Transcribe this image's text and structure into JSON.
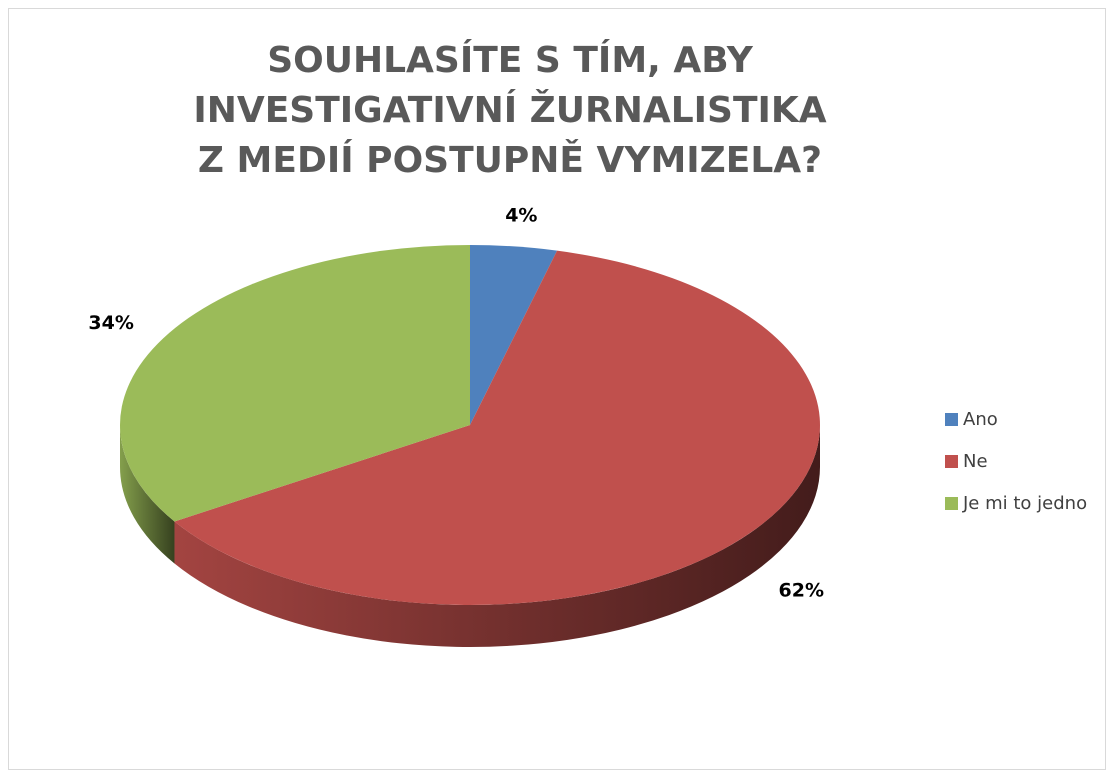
{
  "chart_data": {
    "type": "pie",
    "title": "SOUHLASÍTE S TÍM, ABY INVESTIGATIVNÍ ŽURNALISTIKA Z MEDIÍ POSTUPNĚ VYMIZELA?",
    "categories": [
      "Ano",
      "Ne",
      "Je mi to jedno"
    ],
    "values": [
      4,
      62,
      34
    ],
    "value_labels": [
      "4%",
      "62%",
      "34%"
    ],
    "colors": [
      "#4f81bd",
      "#c0504d",
      "#9bbb59"
    ],
    "legend": "right"
  }
}
